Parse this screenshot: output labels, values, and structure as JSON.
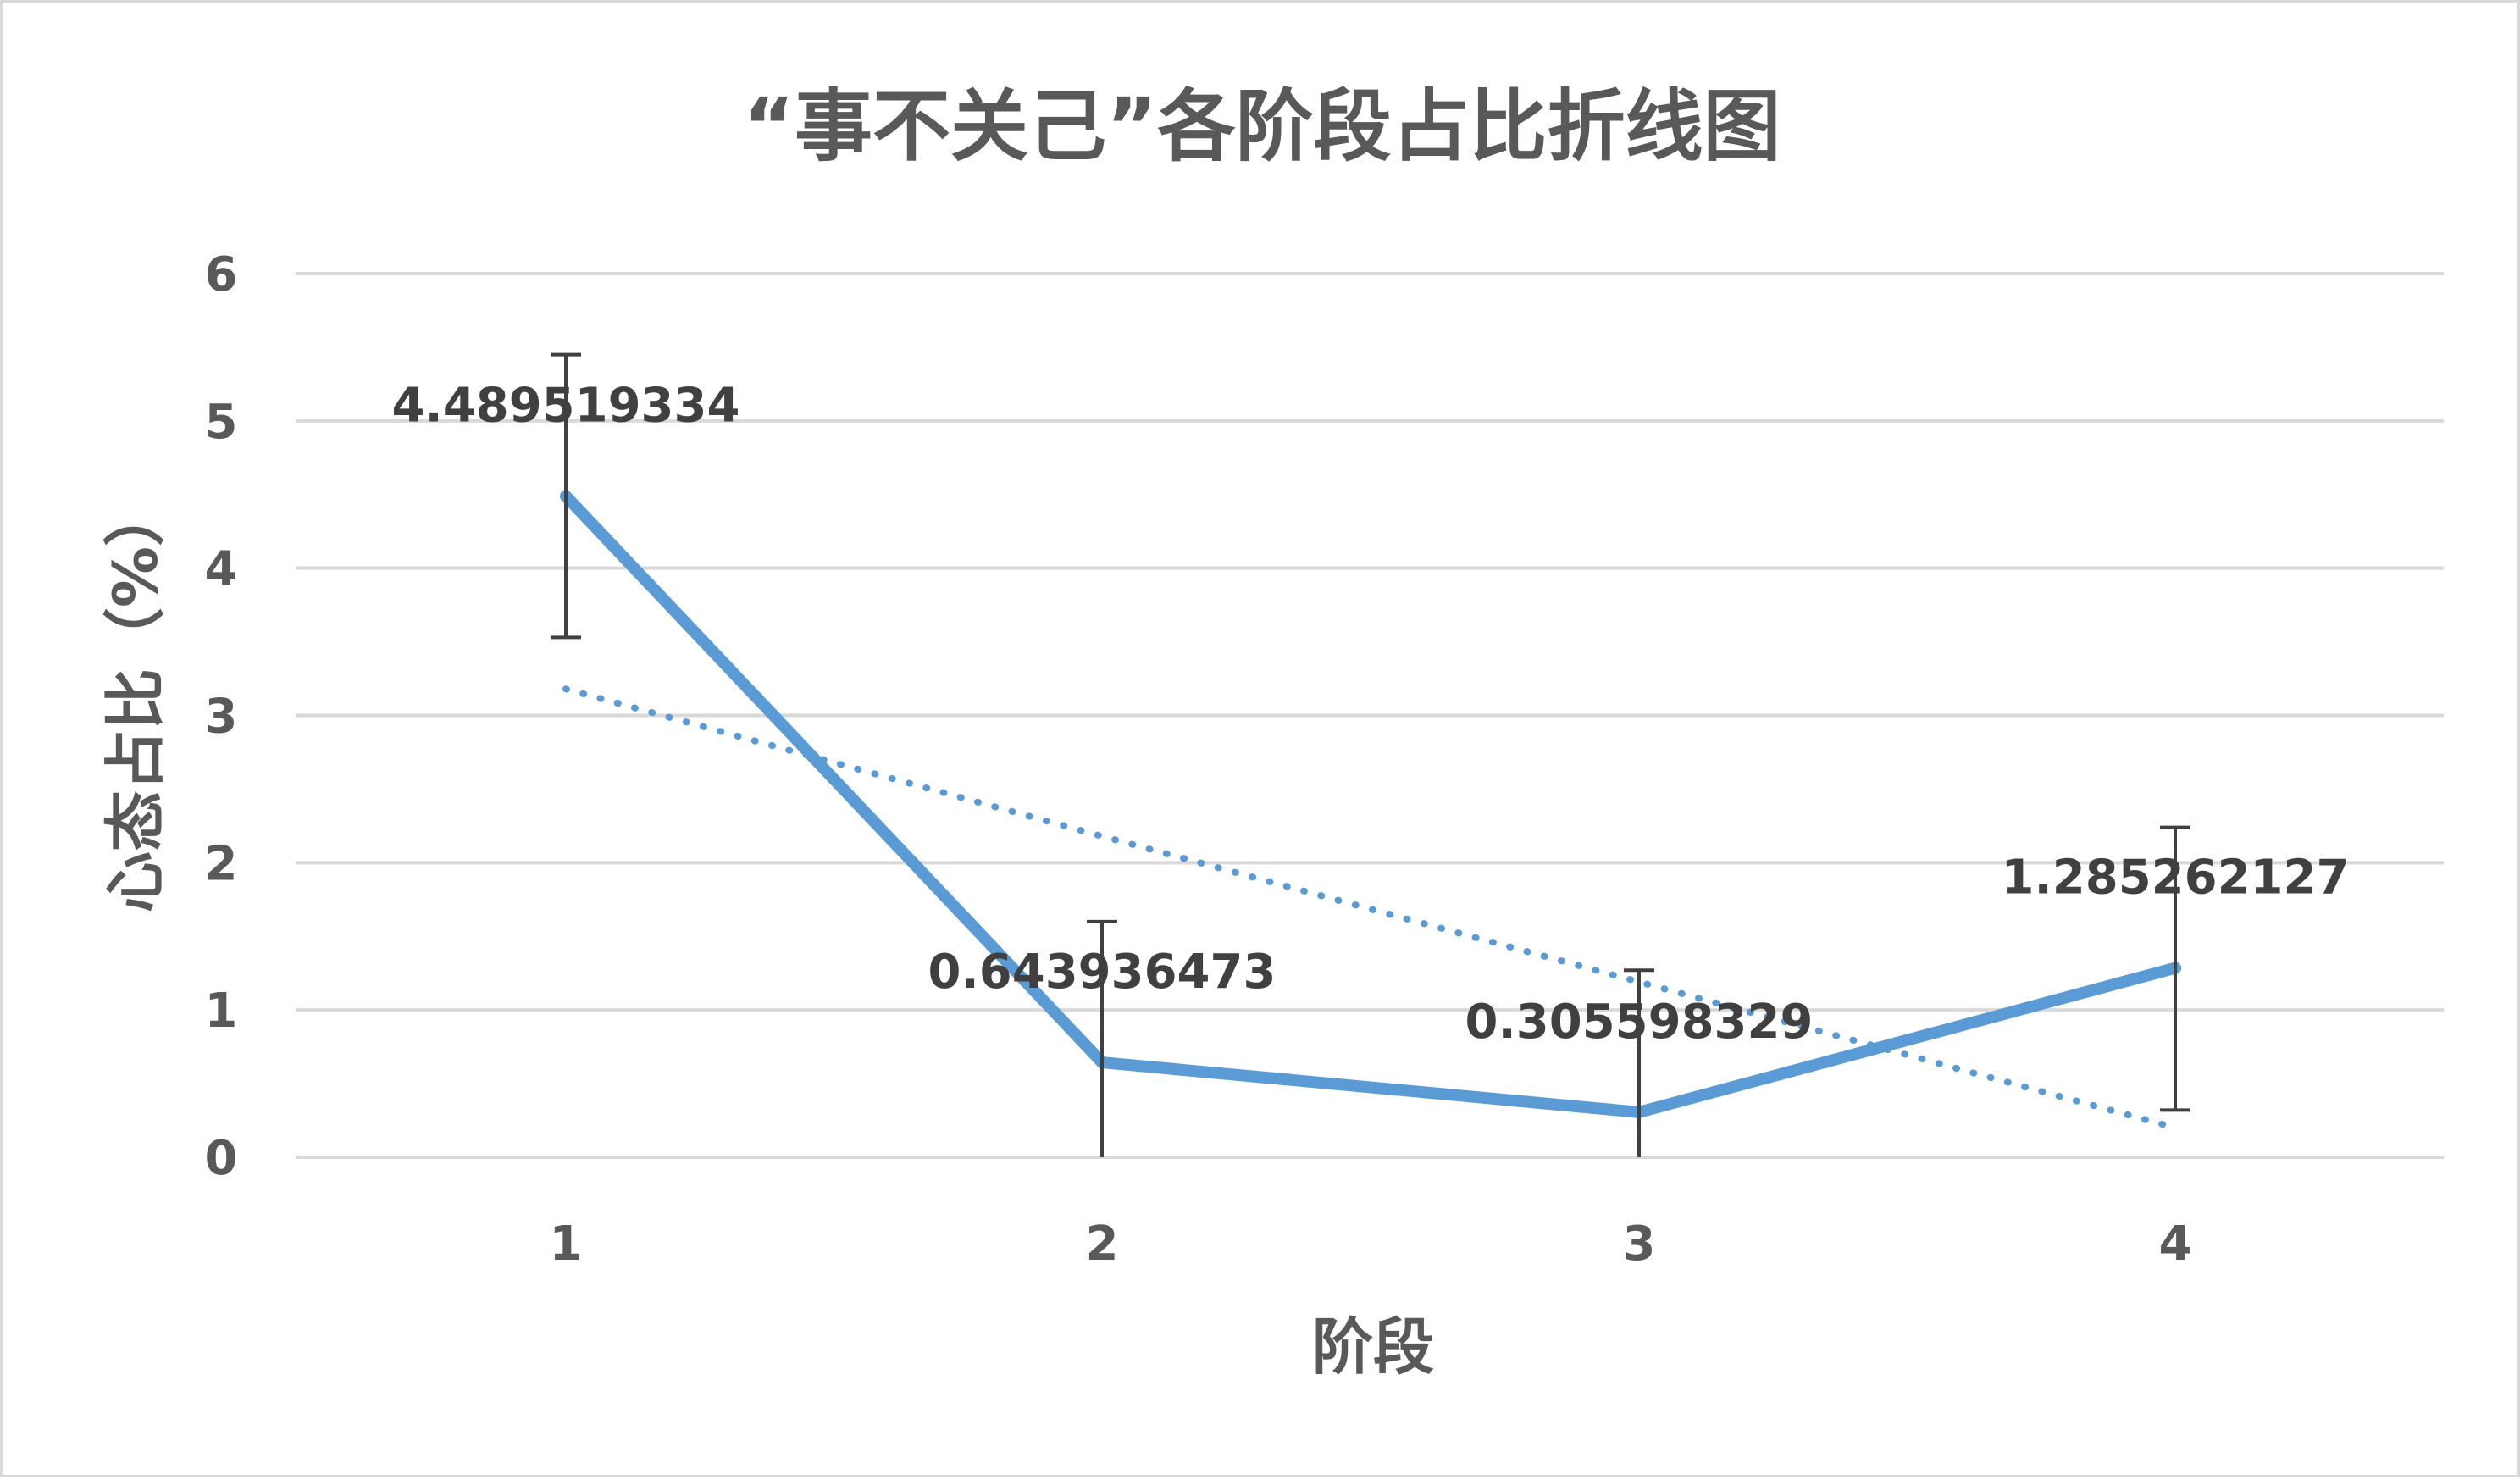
{
  "chart_data": {
    "type": "line",
    "title": "“事不关己”各阶段占比折线图",
    "xlabel": "阶段",
    "ylabel": "心态占比（%）",
    "categories": [
      "1",
      "2",
      "3",
      "4"
    ],
    "ylim": [
      0,
      6
    ],
    "yticks": [
      "0",
      "1",
      "2",
      "3",
      "4",
      "5",
      "6"
    ],
    "grid": true,
    "legend": "none",
    "series": [
      {
        "values": [
          4.489519334,
          0.643936473,
          0.305598329,
          1.285262127
        ],
        "data_labels": [
          "4.489519334",
          "0.643936473",
          "0.305598329",
          "1.285262127"
        ],
        "error_bars": [
          [
            3.53,
            5.45
          ],
          [
            0.0,
            1.6
          ],
          [
            0.0,
            1.27
          ],
          [
            0.32,
            2.24
          ]
        ],
        "color": "#5b9bd5"
      }
    ],
    "trendline": {
      "type": "linear",
      "values": [
        3.18,
        2.18,
        1.19,
        0.2
      ],
      "color": "#5b9bd5"
    }
  }
}
